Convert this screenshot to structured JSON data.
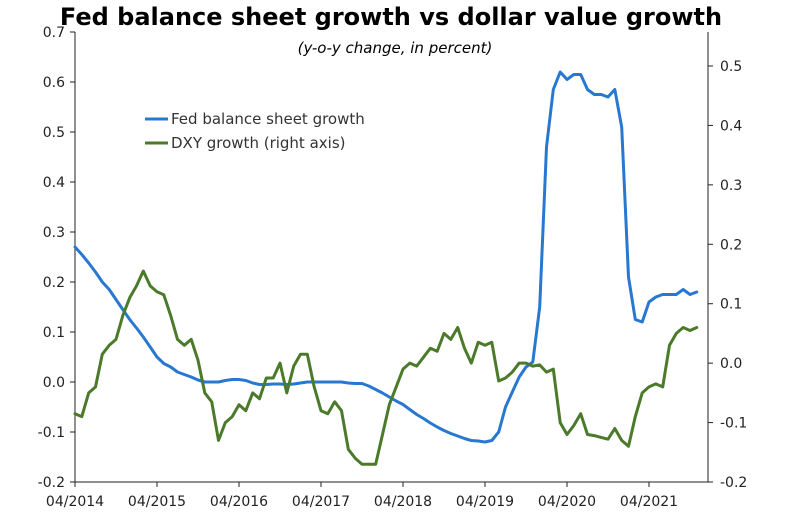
{
  "chart_data": {
    "type": "line",
    "title": "Fed balance sheet growth vs dollar value growth",
    "subtitle": "(y-o-y change, in percent)",
    "xlabel": "",
    "ylabel": "",
    "x_ticks": [
      "04/2014",
      "04/2015",
      "04/2016",
      "04/2017",
      "04/2018",
      "04/2019",
      "04/2020",
      "04/2021"
    ],
    "x_start": "2014-04",
    "x_end": "2021-11",
    "ylim_left": [
      -0.2,
      0.7
    ],
    "yticks_left": [
      "-0.2",
      "-0.1",
      "0.0",
      "0.1",
      "0.2",
      "0.3",
      "0.4",
      "0.5",
      "0.6",
      "0.7"
    ],
    "ylim_right": [
      -0.2,
      0.55
    ],
    "yticks_right": [
      "-0.2",
      "-0.1",
      "0.0",
      "0.1",
      "0.2",
      "0.3",
      "0.4",
      "0.5"
    ],
    "grid": false,
    "legend_position": "upper-left",
    "series": [
      {
        "name": "Fed balance sheet growth",
        "axis": "left",
        "color": "#2878d0",
        "x": [
          "2014-04",
          "2014-05",
          "2014-06",
          "2014-07",
          "2014-08",
          "2014-09",
          "2014-10",
          "2014-11",
          "2014-12",
          "2015-01",
          "2015-02",
          "2015-03",
          "2015-04",
          "2015-05",
          "2015-06",
          "2015-07",
          "2015-08",
          "2015-09",
          "2015-10",
          "2015-11",
          "2015-12",
          "2016-01",
          "2016-02",
          "2016-03",
          "2016-04",
          "2016-05",
          "2016-06",
          "2016-07",
          "2016-08",
          "2016-09",
          "2016-10",
          "2016-11",
          "2016-12",
          "2017-01",
          "2017-02",
          "2017-03",
          "2017-04",
          "2017-05",
          "2017-06",
          "2017-07",
          "2017-08",
          "2017-09",
          "2017-10",
          "2017-11",
          "2017-12",
          "2018-01",
          "2018-02",
          "2018-03",
          "2018-04",
          "2018-05",
          "2018-06",
          "2018-07",
          "2018-08",
          "2018-09",
          "2018-10",
          "2018-11",
          "2018-12",
          "2019-01",
          "2019-02",
          "2019-03",
          "2019-04",
          "2019-05",
          "2019-06",
          "2019-07",
          "2019-08",
          "2019-09",
          "2019-10",
          "2019-11",
          "2019-12",
          "2020-01",
          "2020-02",
          "2020-03",
          "2020-04",
          "2020-05",
          "2020-06",
          "2020-07",
          "2020-08",
          "2020-09",
          "2020-10",
          "2020-11",
          "2020-12",
          "2021-01",
          "2021-02",
          "2021-03",
          "2021-04",
          "2021-05",
          "2021-06",
          "2021-07",
          "2021-08",
          "2021-09",
          "2021-10",
          "2021-11"
        ],
        "values": [
          0.27,
          0.255,
          0.238,
          0.22,
          0.2,
          0.185,
          0.165,
          0.145,
          0.125,
          0.108,
          0.09,
          0.07,
          0.05,
          0.037,
          0.03,
          0.02,
          0.015,
          0.01,
          0.004,
          0.0,
          0.0,
          0.0,
          0.003,
          0.005,
          0.005,
          0.003,
          -0.002,
          -0.005,
          -0.005,
          -0.004,
          -0.004,
          -0.005,
          -0.004,
          -0.002,
          0.0,
          0.0,
          0.0,
          0.0,
          0.0,
          0.0,
          -0.002,
          -0.003,
          -0.003,
          -0.008,
          -0.015,
          -0.022,
          -0.03,
          -0.038,
          -0.045,
          -0.055,
          -0.065,
          -0.073,
          -0.082,
          -0.09,
          -0.097,
          -0.103,
          -0.108,
          -0.113,
          -0.117,
          -0.118,
          -0.12,
          -0.117,
          -0.1,
          -0.05,
          -0.02,
          0.01,
          0.03,
          0.04,
          0.15,
          0.47,
          0.585,
          0.62,
          0.605,
          0.615,
          0.615,
          0.585,
          0.575,
          0.575,
          0.57,
          0.585,
          0.51,
          0.21,
          0.125,
          0.12,
          0.16,
          0.17,
          0.175,
          0.175,
          0.175,
          0.185,
          0.175,
          0.18
        ]
      },
      {
        "name": "DXY growth (right axis)",
        "axis": "right",
        "color": "#4a7a2a",
        "x": [
          "2014-04",
          "2014-05",
          "2014-06",
          "2014-07",
          "2014-08",
          "2014-09",
          "2014-10",
          "2014-11",
          "2014-12",
          "2015-01",
          "2015-02",
          "2015-03",
          "2015-04",
          "2015-05",
          "2015-06",
          "2015-07",
          "2015-08",
          "2015-09",
          "2015-10",
          "2015-11",
          "2015-12",
          "2016-01",
          "2016-02",
          "2016-03",
          "2016-04",
          "2016-05",
          "2016-06",
          "2016-07",
          "2016-08",
          "2016-09",
          "2016-10",
          "2016-11",
          "2016-12",
          "2017-01",
          "2017-02",
          "2017-03",
          "2017-04",
          "2017-05",
          "2017-06",
          "2017-07",
          "2017-08",
          "2017-09",
          "2017-10",
          "2017-11",
          "2017-12",
          "2018-01",
          "2018-02",
          "2018-03",
          "2018-04",
          "2018-05",
          "2018-06",
          "2018-07",
          "2018-08",
          "2018-09",
          "2018-10",
          "2018-11",
          "2018-12",
          "2019-01",
          "2019-02",
          "2019-03",
          "2019-04",
          "2019-05",
          "2019-06",
          "2019-07",
          "2019-08",
          "2019-09",
          "2019-10",
          "2019-11",
          "2019-12",
          "2020-01",
          "2020-02",
          "2020-03",
          "2020-04",
          "2020-05",
          "2020-06",
          "2020-07",
          "2020-08",
          "2020-09",
          "2020-10",
          "2020-11",
          "2020-12",
          "2021-01",
          "2021-02",
          "2021-03",
          "2021-04",
          "2021-05",
          "2021-06",
          "2021-07",
          "2021-08",
          "2021-09",
          "2021-10",
          "2021-11"
        ],
        "values": [
          -0.085,
          -0.09,
          -0.05,
          -0.04,
          0.015,
          0.03,
          0.04,
          0.08,
          0.11,
          0.13,
          0.155,
          0.13,
          0.12,
          0.115,
          0.08,
          0.04,
          0.03,
          0.04,
          0.005,
          -0.05,
          -0.065,
          -0.13,
          -0.1,
          -0.09,
          -0.07,
          -0.08,
          -0.05,
          -0.06,
          -0.025,
          -0.025,
          0.0,
          -0.05,
          -0.005,
          0.015,
          0.015,
          -0.04,
          -0.08,
          -0.085,
          -0.065,
          -0.08,
          -0.145,
          -0.16,
          -0.17,
          -0.17,
          -0.17,
          -0.12,
          -0.07,
          -0.04,
          -0.01,
          0.0,
          -0.005,
          0.01,
          0.025,
          0.02,
          0.05,
          0.04,
          0.06,
          0.025,
          0.0,
          0.035,
          0.03,
          0.035,
          -0.03,
          -0.025,
          -0.015,
          0.0,
          0.0,
          -0.005,
          -0.003,
          -0.015,
          -0.01,
          -0.1,
          -0.12,
          -0.105,
          -0.085,
          -0.12,
          -0.122,
          -0.125,
          -0.128,
          -0.11,
          -0.13,
          -0.14,
          -0.09,
          -0.05,
          -0.04,
          -0.035,
          -0.04,
          0.03,
          0.05,
          0.06,
          0.055,
          0.06
        ]
      }
    ]
  }
}
